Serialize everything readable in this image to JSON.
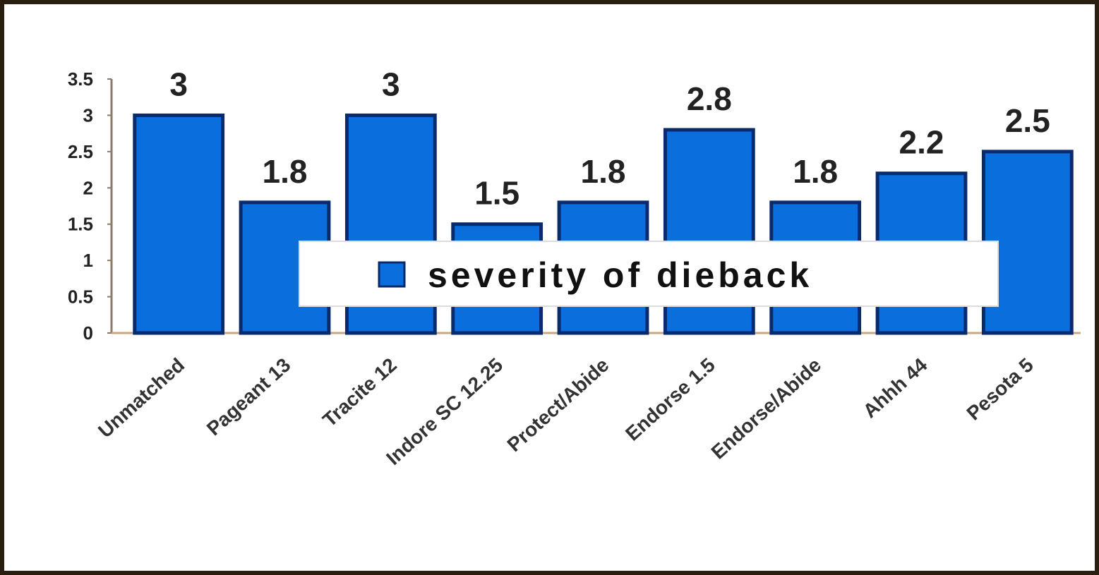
{
  "chart_data": {
    "type": "bar",
    "categories": [
      "Unmatched",
      "Pageant 13",
      "Tracite 12",
      "Indore SC 12.25",
      "Protect/Abide",
      "Endorse 1.5",
      "Endorse/Abide",
      "Ahhh 44",
      "Pesota 5"
    ],
    "series": [
      {
        "name": "severity of dieback",
        "values": [
          3,
          1.8,
          3,
          1.5,
          1.8,
          2.8,
          1.8,
          2.2,
          2.5
        ]
      }
    ],
    "data_labels": [
      "3",
      "1.8",
      "3",
      "1.5",
      "1.8",
      "2.8",
      "1.8",
      "2.2",
      "2.5"
    ],
    "y_ticks": [
      "0",
      "0.5",
      "1",
      "1.5",
      "2",
      "2.5",
      "3",
      "3.5"
    ],
    "ylim": [
      0,
      3.5
    ],
    "title": "",
    "xlabel": "",
    "ylabel": "",
    "grid": false,
    "legend_position": "center",
    "bar_color": "#0a6fdc",
    "bar_edge_color": "#0a2a6e"
  }
}
